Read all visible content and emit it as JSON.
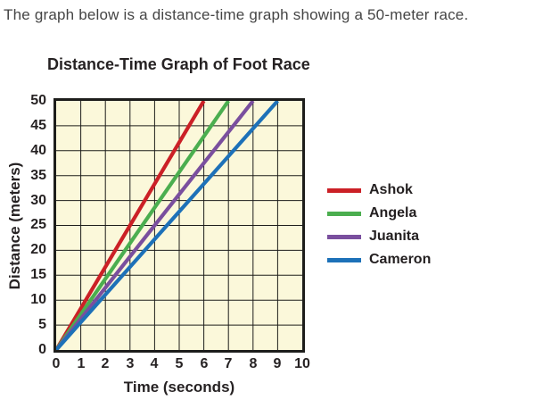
{
  "page": {
    "intro_text": "The graph below is a distance-time graph showing a 50-meter race."
  },
  "chart_data": {
    "type": "line",
    "title": "Distance-Time Graph of Foot Race",
    "xlabel": "Time (seconds)",
    "ylabel": "Distance (meters)",
    "xlim": [
      0,
      10
    ],
    "ylim": [
      0,
      50
    ],
    "x_ticks": [
      0,
      1,
      2,
      3,
      4,
      5,
      6,
      7,
      8,
      9,
      10
    ],
    "y_ticks": [
      0,
      5,
      10,
      15,
      20,
      25,
      30,
      35,
      40,
      45,
      50
    ],
    "grid": true,
    "grid_color": "#1d1d1b",
    "plot_background": "#fbf8da",
    "border_color": "#1d1d1b",
    "legend_position": "right",
    "series": [
      {
        "name": "Ashok",
        "color": "#cb2026",
        "points": [
          [
            0,
            0
          ],
          [
            6,
            50
          ]
        ]
      },
      {
        "name": "Angela",
        "color": "#4bae4f",
        "points": [
          [
            0,
            0
          ],
          [
            7,
            50
          ]
        ]
      },
      {
        "name": "Juanita",
        "color": "#7a4f9e",
        "points": [
          [
            0,
            0
          ],
          [
            8,
            50
          ]
        ]
      },
      {
        "name": "Cameron",
        "color": "#1d71b8",
        "points": [
          [
            0,
            0
          ],
          [
            9,
            50
          ]
        ]
      }
    ]
  }
}
